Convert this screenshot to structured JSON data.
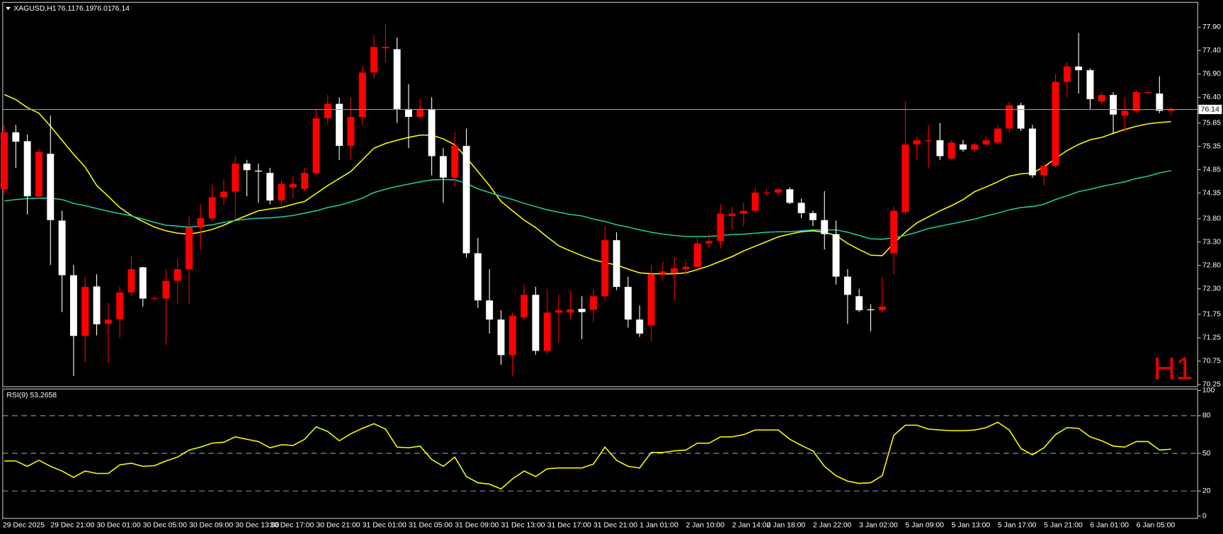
{
  "chart_data": [
    {
      "type": "candlestick",
      "title": "XAGUSD,H1",
      "watermark": "H1",
      "watermark_color": "#e00000",
      "up_color": "#ff0000",
      "down_color": "#ffffff",
      "categories": [
        "29 Dec 2025",
        null,
        null,
        null,
        "29 Dec 21:00",
        null,
        null,
        null,
        "30 Dec 01:00",
        null,
        null,
        null,
        "30 Dec 05:00",
        null,
        null,
        null,
        "30 Dec 09:00",
        null,
        null,
        null,
        "30 Dec 13:00",
        null,
        null,
        "30 Dec 17:00",
        null,
        null,
        null,
        "30 Dec 21:00",
        null,
        null,
        null,
        "31 Dec 01:00",
        null,
        null,
        null,
        "31 Dec 05:00",
        null,
        null,
        null,
        "31 Dec 09:00",
        null,
        null,
        null,
        "31 Dec 13:00",
        null,
        null,
        null,
        "31 Dec 17:00",
        null,
        null,
        null,
        "31 Dec 21:00",
        null,
        null,
        null,
        "1 Jan 01:00",
        null,
        null,
        null,
        "2 Jan 10:00",
        null,
        null,
        null,
        "2 Jan 14:00",
        null,
        null,
        "2 Jan 18:00",
        null,
        null,
        null,
        "2 Jan 22:00",
        null,
        null,
        null,
        "3 Jan 02:00",
        null,
        null,
        null,
        "5 Jan 09:00",
        null,
        null,
        null,
        "5 Jan 13:00",
        null,
        null,
        null,
        "5 Jan 17:00",
        null,
        null,
        null,
        "5 Jan 21:00",
        null,
        null,
        null,
        "6 Jan 01:00",
        null,
        null,
        null,
        "6 Jan 05:00",
        null,
        null,
        null
      ],
      "open": [
        74.43,
        75.65,
        75.46,
        74.28,
        75.19,
        73.76,
        72.59,
        71.29,
        72.35,
        71.55,
        71.65,
        72.22,
        72.76,
        72.09,
        72.09,
        72.47,
        72.72,
        73.61,
        73.81,
        74.26,
        74.38,
        74.98,
        74.83,
        74.78,
        74.19,
        74.47,
        74.44,
        74.78,
        75.95,
        76.26,
        75.36,
        75.98,
        76.93,
        77.45,
        77.43,
        76.15,
        75.98,
        76.15,
        75.14,
        74.68,
        75.36,
        73.06,
        72.05,
        71.64,
        70.88,
        71.69,
        72.17,
        70.97,
        71.79,
        71.79,
        71.87,
        71.85,
        72.14,
        73.34,
        72.34,
        71.64,
        71.52,
        72.62,
        72.64,
        72.72,
        72.77,
        73.27,
        73.32,
        73.86,
        73.91,
        73.97,
        74.36,
        74.36,
        74.43,
        74.14,
        73.92,
        73.77,
        73.47,
        72.56,
        72.14,
        71.86,
        71.84,
        73.06,
        73.94,
        75.39,
        75.48,
        75.48,
        75.09,
        75.39,
        75.28,
        75.39,
        75.43,
        75.73,
        76.23,
        75.73,
        74.73,
        74.93,
        76.73,
        77.06,
        76.98,
        76.31,
        76.45,
        76.01,
        76.11,
        76.51,
        76.48,
        76.11
      ],
      "high": [
        75.81,
        75.81,
        75.6,
        75.31,
        76.01,
        73.97,
        72.81,
        72.56,
        72.61,
        72.0,
        72.34,
        73.01,
        72.77,
        72.12,
        72.72,
        72.94,
        73.84,
        74.11,
        74.53,
        74.64,
        75.14,
        75.06,
        74.98,
        74.89,
        74.64,
        74.73,
        74.89,
        76.15,
        76.45,
        76.4,
        76.4,
        77.06,
        77.73,
        77.98,
        77.68,
        76.68,
        76.38,
        76.4,
        75.31,
        75.65,
        75.73,
        73.39,
        72.72,
        71.84,
        71.8,
        72.39,
        72.34,
        72.3,
        72.17,
        72.25,
        72.14,
        72.3,
        73.64,
        73.51,
        72.56,
        71.94,
        72.81,
        72.89,
        72.97,
        72.89,
        73.39,
        73.47,
        74.11,
        74.06,
        74.14,
        74.47,
        74.44,
        74.47,
        74.47,
        74.23,
        73.97,
        74.39,
        73.76,
        72.72,
        72.3,
        71.97,
        72.55,
        74.06,
        76.31,
        75.56,
        75.81,
        75.85,
        75.48,
        75.48,
        75.43,
        75.56,
        75.81,
        76.31,
        76.28,
        75.81,
        74.98,
        76.9,
        77.15,
        77.78,
        77.02,
        76.51,
        76.51,
        76.4,
        76.56,
        76.55,
        76.85,
        76.19
      ],
      "low": [
        74.31,
        74.89,
        73.89,
        74.23,
        72.81,
        71.8,
        70.43,
        70.72,
        71.3,
        70.72,
        71.25,
        72.14,
        71.92,
        72.05,
        71.1,
        71.97,
        71.97,
        73.14,
        73.76,
        74.09,
        73.81,
        74.28,
        74.14,
        74.11,
        74.11,
        74.23,
        74.39,
        74.73,
        75.81,
        75.06,
        75.06,
        75.81,
        76.81,
        77.15,
        75.85,
        75.31,
        75.95,
        74.73,
        74.14,
        74.48,
        72.97,
        71.89,
        71.34,
        70.67,
        70.43,
        71.64,
        70.89,
        70.89,
        71.14,
        71.64,
        71.22,
        71.59,
        72.05,
        72.27,
        71.47,
        71.27,
        71.17,
        72.47,
        72.06,
        72.62,
        72.67,
        73.17,
        73.17,
        73.56,
        73.64,
        73.92,
        74.29,
        74.31,
        74.11,
        73.81,
        73.64,
        73.14,
        72.39,
        71.55,
        71.8,
        71.39,
        71.8,
        72.61,
        73.89,
        75.06,
        74.89,
        75.06,
        75.06,
        75.23,
        75.23,
        75.36,
        75.39,
        75.65,
        75.68,
        74.68,
        74.51,
        74.89,
        76.4,
        76.48,
        76.15,
        76.23,
        75.61,
        75.65,
        76.06,
        76.48,
        76.06,
        76.01
      ],
      "close": [
        75.65,
        75.45,
        74.28,
        75.23,
        73.77,
        72.59,
        71.29,
        72.34,
        71.54,
        71.64,
        72.22,
        72.72,
        72.09,
        72.1,
        72.47,
        72.72,
        73.61,
        73.81,
        74.26,
        74.38,
        74.98,
        74.84,
        74.81,
        74.19,
        74.54,
        74.54,
        74.78,
        75.95,
        76.26,
        75.36,
        75.98,
        76.93,
        77.48,
        77.48,
        76.15,
        75.98,
        76.15,
        75.14,
        74.68,
        75.36,
        73.06,
        72.05,
        71.64,
        70.88,
        71.72,
        72.17,
        70.97,
        71.79,
        71.84,
        71.86,
        71.8,
        72.14,
        73.34,
        72.34,
        71.64,
        71.34,
        72.61,
        72.67,
        72.74,
        72.77,
        73.27,
        73.32,
        73.91,
        73.91,
        73.97,
        74.36,
        74.36,
        74.43,
        74.14,
        73.92,
        73.77,
        73.47,
        72.56,
        72.17,
        71.84,
        71.84,
        71.92,
        73.97,
        75.39,
        75.48,
        75.48,
        75.14,
        75.43,
        75.28,
        75.39,
        75.48,
        75.73,
        76.23,
        75.73,
        74.73,
        74.93,
        76.73,
        77.06,
        76.98,
        76.36,
        76.45,
        76.03,
        76.11,
        76.51,
        76.51,
        76.11,
        76.14
      ],
      "series": [
        {
          "color": "#ffff00",
          "values": [
            76.46,
            76.35,
            76.18,
            76.06,
            75.78,
            75.48,
            75.18,
            74.91,
            74.51,
            74.28,
            74.04,
            73.87,
            73.74,
            73.62,
            73.54,
            73.49,
            73.47,
            73.51,
            73.57,
            73.66,
            73.77,
            73.87,
            73.97,
            74.01,
            74.04,
            74.11,
            74.17,
            74.34,
            74.51,
            74.66,
            74.81,
            75.06,
            75.31,
            75.41,
            75.48,
            75.54,
            75.59,
            75.59,
            75.51,
            75.38,
            75.11,
            74.81,
            74.51,
            74.17,
            73.97,
            73.77,
            73.61,
            73.41,
            73.22,
            73.11,
            73.01,
            72.92,
            72.86,
            72.81,
            72.72,
            72.64,
            72.62,
            72.62,
            72.62,
            72.64,
            72.71,
            72.79,
            72.89,
            72.99,
            73.11,
            73.21,
            73.31,
            73.41,
            73.47,
            73.52,
            73.54,
            73.51,
            73.44,
            73.27,
            73.14,
            73.02,
            73.01,
            73.27,
            73.51,
            73.71,
            73.84,
            73.97,
            74.08,
            74.21,
            74.38,
            74.48,
            74.59,
            74.71,
            74.76,
            74.78,
            74.91,
            75.09,
            75.26,
            75.39,
            75.49,
            75.54,
            75.63,
            75.71,
            75.78,
            75.83,
            75.86,
            75.88
          ]
        },
        {
          "color": "#20c9a6",
          "values": [
            74.18,
            74.21,
            74.23,
            74.24,
            74.24,
            74.21,
            74.13,
            74.08,
            74.02,
            73.96,
            73.91,
            73.86,
            73.79,
            73.72,
            73.66,
            73.64,
            73.62,
            73.64,
            73.67,
            73.72,
            73.76,
            73.79,
            73.81,
            73.82,
            73.84,
            73.87,
            73.92,
            73.97,
            74.04,
            74.09,
            74.16,
            74.24,
            74.36,
            74.43,
            74.49,
            74.54,
            74.59,
            74.63,
            74.64,
            74.63,
            74.56,
            74.44,
            74.36,
            74.28,
            74.21,
            74.13,
            74.06,
            73.99,
            73.94,
            73.89,
            73.86,
            73.79,
            73.74,
            73.67,
            73.62,
            73.56,
            73.51,
            73.47,
            73.44,
            73.42,
            73.42,
            73.42,
            73.44,
            73.46,
            73.47,
            73.49,
            73.51,
            73.52,
            73.52,
            73.54,
            73.56,
            73.56,
            73.56,
            73.51,
            73.44,
            73.37,
            73.36,
            73.39,
            73.44,
            73.51,
            73.59,
            73.64,
            73.69,
            73.74,
            73.79,
            73.86,
            73.92,
            73.99,
            74.04,
            74.06,
            74.11,
            74.21,
            74.29,
            74.38,
            74.43,
            74.49,
            74.54,
            74.59,
            74.66,
            74.71,
            74.78,
            74.83
          ]
        }
      ],
      "ylim": [
        70.22,
        78.4
      ],
      "yticks": [
        70.25,
        70.75,
        71.25,
        71.75,
        {
          "value": 72.3,
          "label": "72.30"
        },
        {
          "value": 72.8,
          "label": "72.80"
        },
        {
          "value": 73.3,
          "label": "73.30"
        },
        {
          "value": 73.8,
          "label": "73.80"
        },
        74.35,
        74.85,
        75.35,
        75.85,
        {
          "value": 76.4,
          "label": "76.40"
        },
        {
          "value": 76.9,
          "label": "76.90"
        },
        {
          "value": 77.4,
          "label": "77.40"
        },
        {
          "value": 77.9,
          "label": "77.90"
        }
      ]
    },
    {
      "type": "line",
      "title": "RSI(9) 53.2658",
      "series": [
        {
          "color": "#ffff00",
          "values": [
            43.9,
            43.9,
            39.6,
            44.5,
            39.6,
            35.9,
            30.9,
            35.9,
            34.0,
            34.0,
            40.8,
            42.1,
            39.6,
            40.2,
            43.9,
            47.0,
            52.6,
            55.0,
            58.1,
            58.8,
            63.1,
            61.2,
            59.4,
            54.4,
            56.9,
            56.3,
            61.2,
            71.1,
            67.4,
            60.0,
            65.6,
            69.9,
            73.6,
            69.3,
            55.0,
            54.4,
            55.7,
            45.1,
            39.6,
            47.0,
            31.5,
            26.6,
            25.4,
            21.6,
            29.7,
            35.9,
            31.5,
            37.7,
            38.3,
            38.3,
            38.3,
            41.4,
            55.0,
            44.5,
            39.6,
            38.3,
            50.7,
            50.7,
            51.9,
            52.6,
            58.1,
            58.1,
            63.1,
            63.1,
            64.9,
            68.6,
            68.6,
            68.6,
            61.2,
            56.3,
            51.9,
            39.6,
            32.2,
            27.8,
            26.0,
            26.6,
            32.2,
            64.3,
            72.4,
            72.4,
            69.3,
            68.6,
            68.0,
            68.0,
            68.6,
            70.5,
            74.8,
            68.6,
            53.8,
            48.9,
            54.4,
            64.9,
            70.5,
            69.9,
            63.1,
            60.0,
            55.7,
            55.0,
            59.4,
            59.4,
            52.6,
            53.3
          ]
        }
      ],
      "ylim": [
        0,
        100
      ],
      "yticks": [
        0,
        20,
        50,
        80,
        100
      ]
    }
  ]
}
